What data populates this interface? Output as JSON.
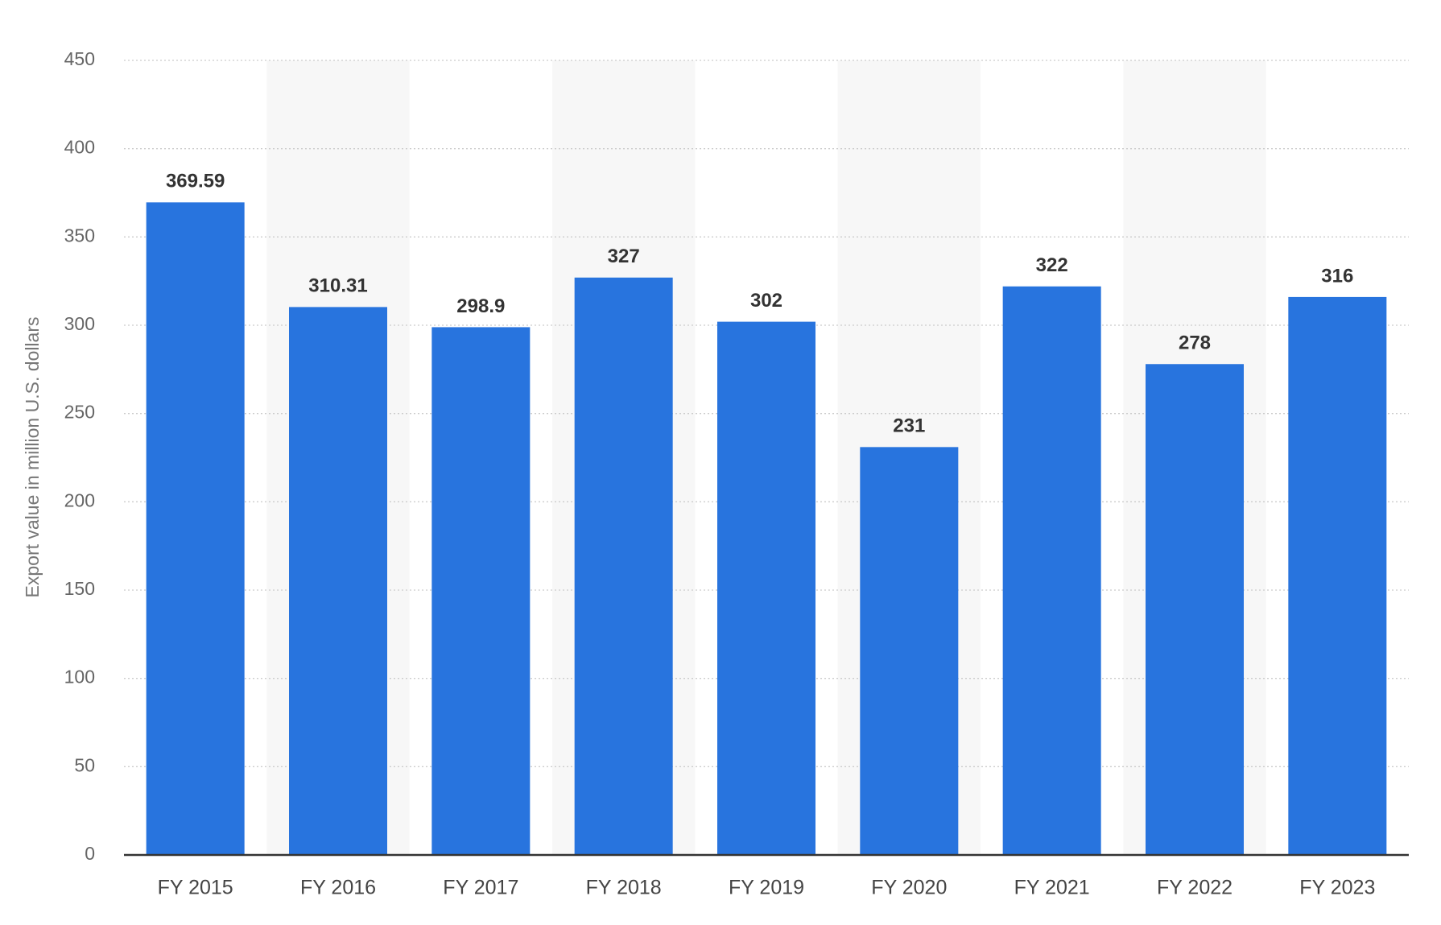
{
  "chart_data": {
    "type": "bar",
    "y_axis_label": "Export value in million U.S. dollars",
    "categories": [
      "FY 2015",
      "FY 2016",
      "FY 2017",
      "FY 2018",
      "FY 2019",
      "FY 2020",
      "FY 2021",
      "FY 2022",
      "FY 2023"
    ],
    "values": [
      369.59,
      310.31,
      298.9,
      327,
      302,
      231,
      322,
      278,
      316
    ],
    "color": "#2874de",
    "ylim": [
      0,
      450
    ],
    "yticks": [
      0,
      50,
      100,
      150,
      200,
      250,
      300,
      350,
      400,
      450
    ],
    "grid": true
  }
}
